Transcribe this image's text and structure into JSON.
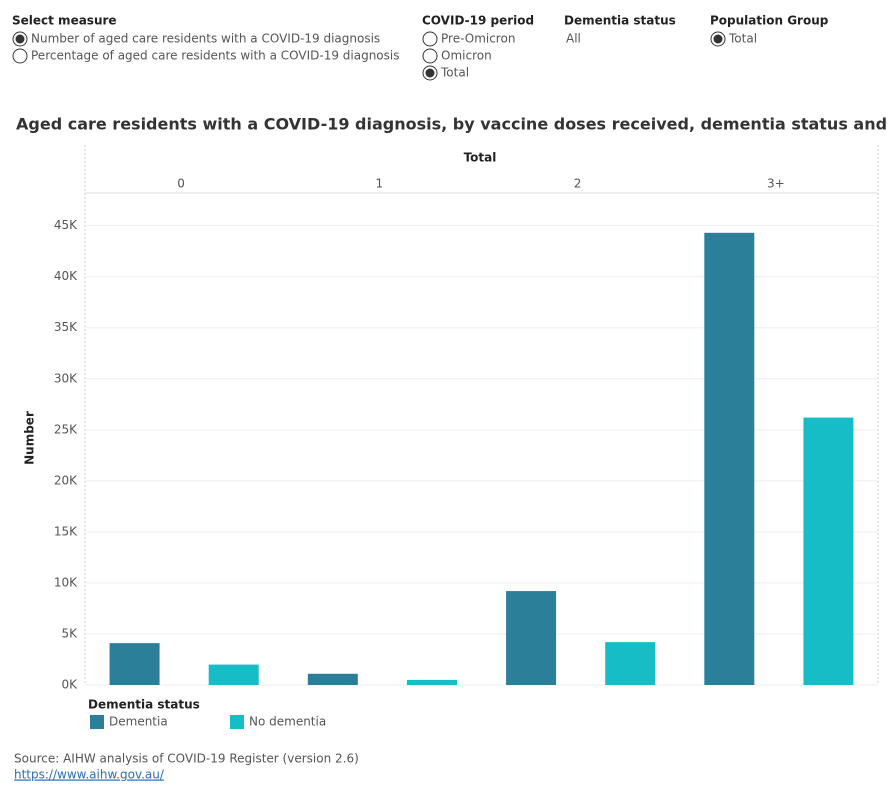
{
  "controls": {
    "measure": {
      "label": "Select measure",
      "options": [
        "Number of aged care residents with a COVID-19 diagnosis",
        "Percentage of aged care residents with a COVID-19 diagnosis"
      ],
      "selected": 0
    },
    "period": {
      "label": "COVID-19 period",
      "options": [
        "Pre-Omicron",
        "Omicron",
        "Total"
      ],
      "selected": 2
    },
    "dementia": {
      "label": "Dementia status",
      "value": "All"
    },
    "population": {
      "label": "Population Group",
      "options": [
        "Total"
      ],
      "selected": 0
    }
  },
  "chart_data": {
    "type": "bar",
    "title": "Aged care residents with a COVID-19 diagnosis, by vaccine doses received, dementia status and None",
    "panel_header": "Total",
    "categories": [
      "0",
      "1",
      "2",
      "3+"
    ],
    "y_label": "Number",
    "series": [
      {
        "name": "Dementia",
        "color": "#2c7f99",
        "values": [
          4100,
          1100,
          9200,
          44300
        ]
      },
      {
        "name": "No dementia",
        "color": "#16bcc6",
        "values": [
          2000,
          500,
          4200,
          26200
        ]
      }
    ],
    "legend_title": "Dementia status",
    "ylim": [
      0,
      48200
    ],
    "yticks": [
      {
        "value": 0,
        "label": "0K"
      },
      {
        "value": 5000,
        "label": "5K"
      },
      {
        "value": 10000,
        "label": "10K"
      },
      {
        "value": 15000,
        "label": "15K"
      },
      {
        "value": 20000,
        "label": "20K"
      },
      {
        "value": 25000,
        "label": "25K"
      },
      {
        "value": 30000,
        "label": "30K"
      },
      {
        "value": 35000,
        "label": "35K"
      },
      {
        "value": 40000,
        "label": "40K"
      },
      {
        "value": 45000,
        "label": "45K"
      }
    ],
    "grid": true
  },
  "footer": {
    "source": "Source: AIHW analysis of COVID-19 Register (version 2.6)",
    "link": "https://www.aihw.gov.au/"
  }
}
